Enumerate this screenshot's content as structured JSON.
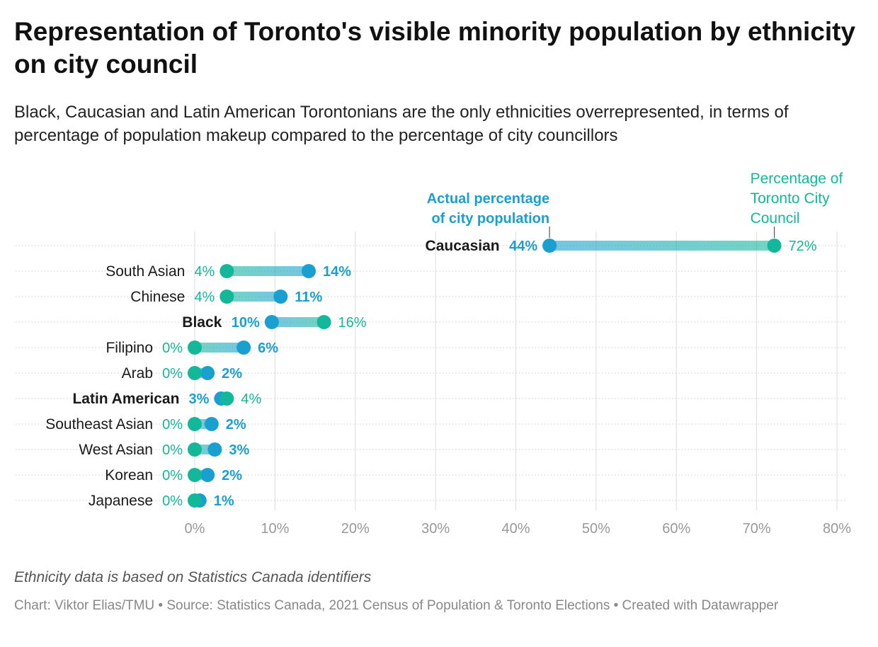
{
  "header": {
    "title": "Representation of Toronto's visible minority population by ethnicity on city council",
    "subtitle": "Black, Caucasian and Latin American Torontonians are the only ethnicities overrepresented, in terms of percentage of population makeup compared to the percentage of city councillors"
  },
  "chart_data": {
    "type": "dot",
    "series": [
      {
        "name": "Actual percentage of city population",
        "color": "#1a9fd1"
      },
      {
        "name": "Percentage of Toronto City Council",
        "color": "#13b89a"
      }
    ],
    "annotations": {
      "population": [
        "Actual percentage",
        "of city population"
      ],
      "council": [
        "Percentage of",
        "Toronto City",
        "Council"
      ]
    },
    "xlim": [
      0,
      80
    ],
    "x_ticks": [
      0,
      10,
      20,
      30,
      40,
      50,
      60,
      70,
      80
    ],
    "x_tick_labels": [
      "0%",
      "10%",
      "20%",
      "30%",
      "40%",
      "50%",
      "60%",
      "70%",
      "80%"
    ],
    "rows": [
      {
        "category": "Caucasian",
        "population": 44.2,
        "council": 72.2,
        "population_label": "44%",
        "council_label": "72%",
        "bold": true
      },
      {
        "category": "South Asian",
        "population": 14.2,
        "council": 4.0,
        "population_label": "14%",
        "council_label": "4%",
        "bold": false
      },
      {
        "category": "Chinese",
        "population": 10.7,
        "council": 4.0,
        "population_label": "11%",
        "council_label": "4%",
        "bold": false
      },
      {
        "category": "Black",
        "population": 9.6,
        "council": 16.1,
        "population_label": "10%",
        "council_label": "16%",
        "bold": true
      },
      {
        "category": "Filipino",
        "population": 6.1,
        "council": 0.0,
        "population_label": "6%",
        "council_label": "0%",
        "bold": false
      },
      {
        "category": "Arab",
        "population": 1.6,
        "council": 0.0,
        "population_label": "2%",
        "council_label": "0%",
        "bold": false
      },
      {
        "category": "Latin American",
        "population": 3.3,
        "council": 4.0,
        "population_label": "3%",
        "council_label": "4%",
        "bold": true
      },
      {
        "category": "Southeast Asian",
        "population": 2.1,
        "council": 0.0,
        "population_label": "2%",
        "council_label": "0%",
        "bold": false
      },
      {
        "category": "West Asian",
        "population": 2.5,
        "council": 0.0,
        "population_label": "3%",
        "council_label": "0%",
        "bold": false
      },
      {
        "category": "Korean",
        "population": 1.6,
        "council": 0.0,
        "population_label": "2%",
        "council_label": "0%",
        "bold": false
      },
      {
        "category": "Japanese",
        "population": 0.6,
        "council": 0.0,
        "population_label": "1%",
        "council_label": "0%",
        "bold": false
      }
    ]
  },
  "notes": "Ethnicity data is based on Statistics Canada identifiers",
  "footer": "Chart: Viktor Elias/TMU • Source: Statistics Canada, 2021 Census of Population & Toronto Elections • Created with Datawrapper"
}
